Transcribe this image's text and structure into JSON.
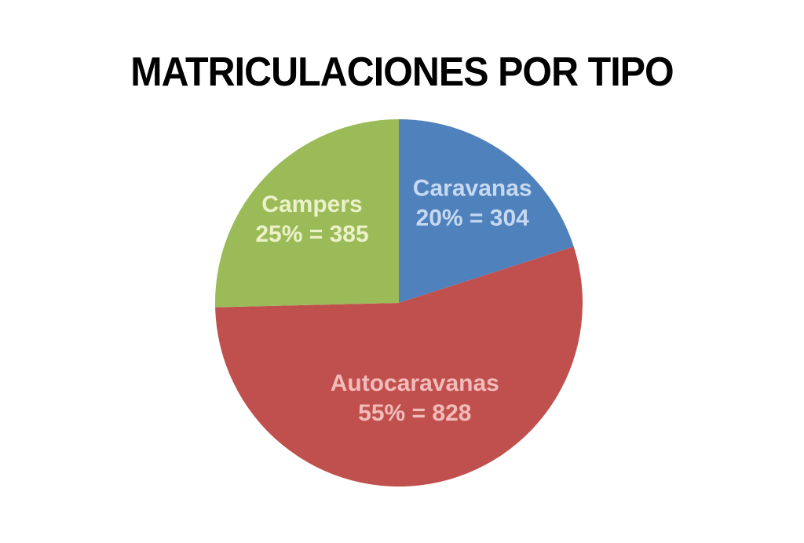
{
  "chart_data": {
    "type": "pie",
    "title": "MATRICULACIONES POR TIPO",
    "slices": [
      {
        "label": "Caravanas",
        "percent": "20%",
        "value": 304,
        "text": "20% = 304",
        "color": "#4f81bd",
        "label_color": "#c6d9f1"
      },
      {
        "label": "Autocaravanas",
        "percent": "55%",
        "value": 828,
        "text": "55% = 828",
        "color": "#c0504d",
        "label_color": "#f2bcbb"
      },
      {
        "label": "Campers",
        "percent": "25%",
        "value": 385,
        "text": "25% = 385",
        "color": "#9bbb59",
        "label_color": "#ebf1c8"
      }
    ],
    "start_angle_deg": 0,
    "direction": "clockwise",
    "legend": "none"
  }
}
